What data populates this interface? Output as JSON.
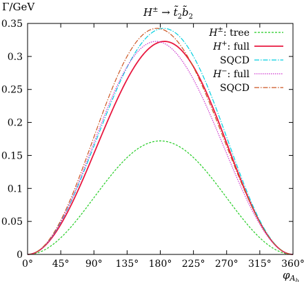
{
  "chart_data": {
    "type": "line",
    "title": "H^{±} → t̃₂b̃₂",
    "title_parts": {
      "h": "H",
      "h_sup": "±",
      "arrow": " → ",
      "t": "t̃",
      "t_sub": "2",
      "b": "b̃",
      "b_sub": "2"
    },
    "ylabel": "Γ/GeV",
    "xlabel": "φ",
    "xlabel_sub": "A",
    "xlabel_subsub": "b",
    "xlim": [
      0,
      360
    ],
    "ylim": [
      0,
      0.35
    ],
    "xticks": [
      0,
      45,
      90,
      135,
      180,
      225,
      270,
      315,
      360
    ],
    "xtick_labels": [
      "0°",
      "45°",
      "90°",
      "135°",
      "180°",
      "225°",
      "270°",
      "315°",
      "360°"
    ],
    "yticks": [
      0,
      0.05,
      0.1,
      0.15,
      0.2,
      0.25,
      0.3,
      0.35
    ],
    "ytick_labels": [
      "0",
      "0.05",
      "0.1",
      "0.15",
      "0.2",
      "0.25",
      "0.3",
      "0.35"
    ],
    "grid": false,
    "legend_position": "top-right",
    "legend": [
      {
        "prefix": "H",
        "sup": "±",
        "text": ": tree"
      },
      {
        "prefix": "H",
        "sup": "+",
        "text": ":  full"
      },
      {
        "prefix": "",
        "sup": "",
        "text": "SQCD"
      },
      {
        "prefix": "H",
        "sup": "−",
        "text": ":  full"
      },
      {
        "prefix": "",
        "sup": "",
        "text": "SQCD"
      }
    ],
    "series": [
      {
        "key": "tree",
        "color": "#22cc22",
        "dash": "3,2",
        "width": 1.2,
        "peak": 0.172,
        "shape": "sin2",
        "skew": 0
      },
      {
        "key": "plus_full",
        "color": "#e8173f",
        "dash": "",
        "width": 1.8,
        "peak": 0.322,
        "shape": "sin2",
        "skew": -0.05
      },
      {
        "key": "plus_sqcd",
        "color": "#00cfe0",
        "dash": "7,2,1.5,2",
        "width": 1.2,
        "peak": 0.342,
        "shape": "sin2",
        "skew": -0.04
      },
      {
        "key": "minus_full",
        "color": "#cc33cc",
        "dash": "1.5,1.5",
        "width": 1.2,
        "peak": 0.322,
        "shape": "sin2",
        "skew": 0.05
      },
      {
        "key": "minus_sqcd",
        "color": "#cc5522",
        "dash": "7,2,1.5,2",
        "width": 1.2,
        "peak": 0.342,
        "shape": "sin2",
        "skew": 0.04
      }
    ]
  }
}
